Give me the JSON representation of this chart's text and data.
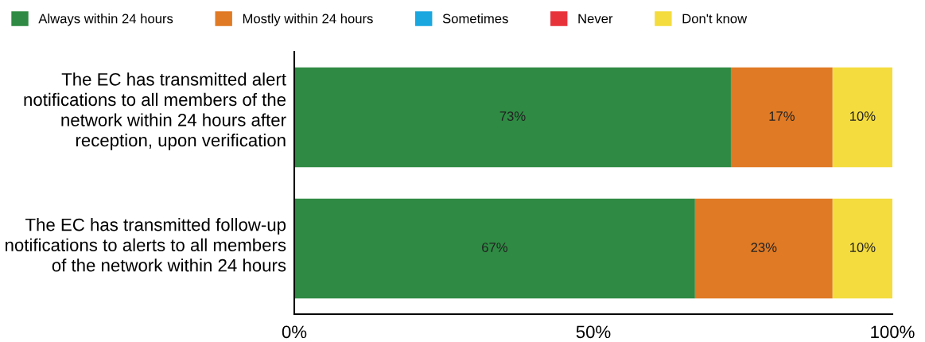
{
  "chart_data": {
    "type": "bar",
    "orientation": "horizontal",
    "stacked": true,
    "categories": [
      "The EC has transmitted alert notifications to all members of the network within 24 hours after reception, upon verification",
      "The EC has transmitted follow-up notifications to alerts to all members of the network within 24 hours"
    ],
    "series": [
      {
        "name": "Always within 24 hours",
        "color": "#2f8a43",
        "values": [
          73,
          67
        ],
        "value_labels": [
          "73%",
          "67%"
        ]
      },
      {
        "name": "Mostly within 24 hours",
        "color": "#e07a24",
        "values": [
          17,
          23
        ],
        "value_labels": [
          "17%",
          "23%"
        ]
      },
      {
        "name": "Sometimes",
        "color": "#1aa7e0",
        "values": [
          0,
          0
        ],
        "value_labels": [
          null,
          null
        ]
      },
      {
        "name": "Never",
        "color": "#e8323a",
        "values": [
          0,
          0
        ],
        "value_labels": [
          null,
          null
        ]
      },
      {
        "name": "Don't know",
        "color": "#f4dc3e",
        "values": [
          10,
          10
        ],
        "value_labels": [
          "10%",
          "10%"
        ]
      }
    ],
    "xlim": [
      0,
      100
    ],
    "xticks": [
      {
        "value": 0,
        "label": "0%"
      },
      {
        "value": 50,
        "label": "50%"
      },
      {
        "value": 100,
        "label": "100%"
      }
    ],
    "grid": false,
    "legend": "top left"
  }
}
